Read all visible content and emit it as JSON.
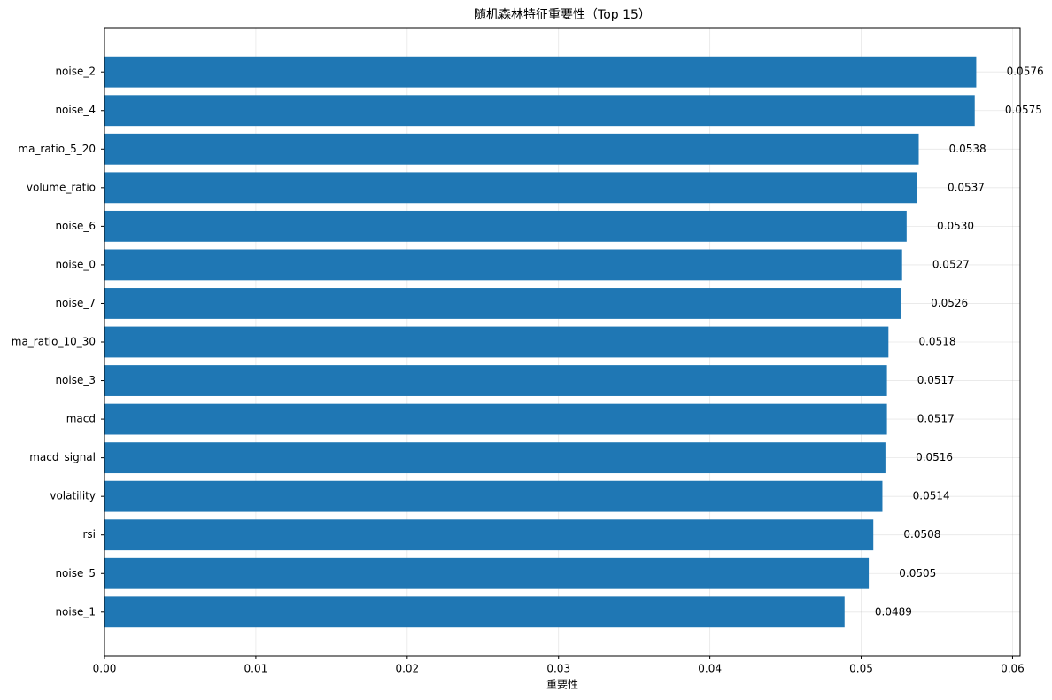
{
  "chart_data": {
    "type": "barh",
    "title": "随机森林特征重要性（Top 15）",
    "x_label": "重要性",
    "categories": [
      "noise_2",
      "noise_4",
      "ma_ratio_5_20",
      "volume_ratio",
      "noise_6",
      "noise_0",
      "noise_7",
      "ma_ratio_10_30",
      "noise_3",
      "macd",
      "macd_signal",
      "volatility",
      "rsi",
      "noise_5",
      "noise_1"
    ],
    "values": [
      0.0576,
      0.0575,
      0.0538,
      0.0537,
      0.053,
      0.0527,
      0.0526,
      0.0518,
      0.0517,
      0.0517,
      0.0516,
      0.0514,
      0.0508,
      0.0505,
      0.0489
    ],
    "value_labels": [
      "0.0576",
      "0.0575",
      "0.0538",
      "0.0537",
      "0.0530",
      "0.0527",
      "0.0526",
      "0.0518",
      "0.0517",
      "0.0517",
      "0.0516",
      "0.0514",
      "0.0508",
      "0.0505",
      "0.0489"
    ],
    "color": "#1f77b4",
    "xlim": [
      0,
      0.0605
    ],
    "xticks": [
      {
        "value": 0,
        "label": "0.00"
      },
      0.01,
      0.02,
      0.03,
      0.04,
      0.05,
      0.06
    ],
    "grid": true
  }
}
